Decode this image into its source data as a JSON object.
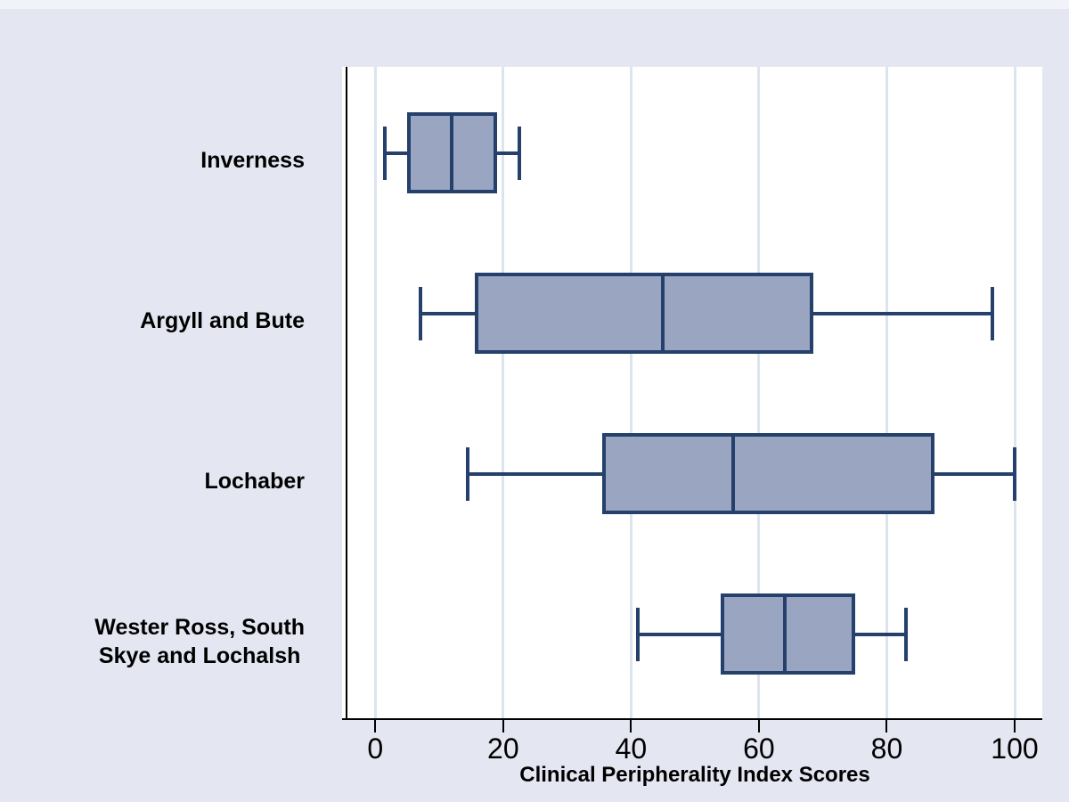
{
  "chart_data": {
    "type": "boxplot",
    "orientation": "horizontal",
    "title": "",
    "xlabel": "Clinical Peripherality Index Scores",
    "ylabel": "",
    "xlim": [
      -5,
      104
    ],
    "xticks": [
      0,
      20,
      40,
      60,
      80,
      100
    ],
    "grid": true,
    "legend": "none",
    "categories": [
      "Inverness",
      "Argyll and Bute",
      "Lochaber",
      "Wester Ross, South\nSkye and Lochalsh"
    ],
    "series": [
      {
        "name": "Inverness",
        "whisker_low": 1.5,
        "q1": 5,
        "median": 12,
        "q3": 19,
        "whisker_high": 22.5
      },
      {
        "name": "Argyll and Bute",
        "whisker_low": 7,
        "q1": 15.5,
        "median": 45,
        "q3": 68.5,
        "whisker_high": 96.5
      },
      {
        "name": "Lochaber",
        "whisker_low": 14.5,
        "q1": 35.5,
        "median": 56,
        "q3": 87.5,
        "whisker_high": 100
      },
      {
        "name": "Wester Ross, South Skye and Lochalsh",
        "whisker_low": 41,
        "q1": 54,
        "median": 64,
        "q3": 75,
        "whisker_high": 83
      }
    ]
  },
  "colors": {
    "background": "#e4e7f1",
    "top_strip": "#f1f3f9",
    "plot_background": "#ffffff",
    "gridline": "#dde4ef",
    "box_fill": "#99a5c1",
    "box_border": "#24406b",
    "axis_line": "#000000",
    "text": "#000000"
  }
}
